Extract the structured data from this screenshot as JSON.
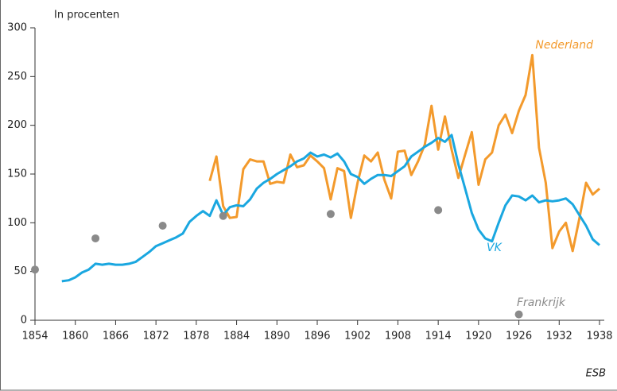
{
  "chart_data": {
    "type": "line",
    "y_label": "In procenten",
    "source": "ESB",
    "xlim": [
      1854,
      1938
    ],
    "xticks": [
      1854,
      1860,
      1866,
      1872,
      1878,
      1884,
      1890,
      1896,
      1902,
      1908,
      1914,
      1920,
      1926,
      1932,
      1938
    ],
    "ylim": [
      0,
      300
    ],
    "yticks": [
      0,
      50,
      100,
      150,
      200,
      250,
      300
    ],
    "grid": false,
    "series": [
      {
        "name": "Nederland",
        "color": "#f39a2c",
        "type": "line",
        "x": [
          1880,
          1881,
          1882,
          1883,
          1884,
          1885,
          1886,
          1887,
          1888,
          1889,
          1890,
          1891,
          1892,
          1893,
          1894,
          1895,
          1896,
          1897,
          1898,
          1899,
          1900,
          1901,
          1902,
          1903,
          1904,
          1905,
          1906,
          1907,
          1908,
          1909,
          1910,
          1911,
          1912,
          1913,
          1914,
          1915,
          1916,
          1917,
          1918,
          1919,
          1920,
          1921,
          1922,
          1923,
          1924,
          1925,
          1926,
          1927,
          1928,
          1929,
          1930,
          1931,
          1932,
          1933,
          1934,
          1935,
          1936,
          1937,
          1938
        ],
        "values": [
          143,
          168,
          117,
          105,
          106,
          155,
          165,
          163,
          163,
          140,
          142,
          141,
          170,
          157,
          159,
          169,
          163,
          156,
          124,
          156,
          153,
          105,
          141,
          169,
          163,
          172,
          144,
          125,
          173,
          174,
          149,
          163,
          180,
          220,
          175,
          209,
          175,
          146,
          170,
          193,
          139,
          165,
          172,
          200,
          211,
          192,
          215,
          231,
          272,
          177,
          141,
          74,
          91,
          100,
          71,
          104,
          141,
          129,
          135
        ]
      },
      {
        "name": "VK",
        "color": "#1aa7e0",
        "type": "line",
        "x": [
          1858,
          1859,
          1860,
          1861,
          1862,
          1863,
          1864,
          1865,
          1866,
          1867,
          1868,
          1869,
          1870,
          1871,
          1872,
          1873,
          1874,
          1875,
          1876,
          1877,
          1878,
          1879,
          1880,
          1881,
          1882,
          1883,
          1884,
          1885,
          1886,
          1887,
          1888,
          1889,
          1890,
          1891,
          1892,
          1893,
          1894,
          1895,
          1896,
          1897,
          1898,
          1899,
          1900,
          1901,
          1902,
          1903,
          1904,
          1905,
          1906,
          1907,
          1908,
          1909,
          1910,
          1911,
          1912,
          1913,
          1914,
          1915,
          1916,
          1917,
          1918,
          1919,
          1920,
          1921,
          1922,
          1923,
          1924,
          1925,
          1926,
          1927,
          1928,
          1929,
          1930,
          1931,
          1932,
          1933,
          1934,
          1935,
          1936,
          1937,
          1938
        ],
        "values": [
          40,
          41,
          44,
          49,
          52,
          58,
          57,
          58,
          57,
          57,
          58,
          60,
          65,
          70,
          76,
          79,
          82,
          85,
          89,
          101,
          107,
          112,
          107,
          123,
          108,
          116,
          118,
          117,
          124,
          135,
          141,
          145,
          150,
          154,
          158,
          163,
          166,
          172,
          168,
          170,
          167,
          171,
          163,
          150,
          147,
          140,
          145,
          149,
          149,
          148,
          153,
          158,
          168,
          173,
          178,
          182,
          187,
          183,
          190,
          160,
          135,
          110,
          93,
          84,
          81,
          100,
          118,
          128,
          127,
          123,
          128,
          121,
          123,
          122,
          123,
          125,
          119,
          108,
          97,
          83,
          77
        ]
      },
      {
        "name": "Frankrijk",
        "color": "#8a8a8a",
        "type": "scatter",
        "x": [
          1854,
          1863,
          1873,
          1882,
          1898,
          1914,
          1926
        ],
        "values": [
          52,
          84,
          97,
          107,
          109,
          113,
          6
        ]
      }
    ]
  }
}
